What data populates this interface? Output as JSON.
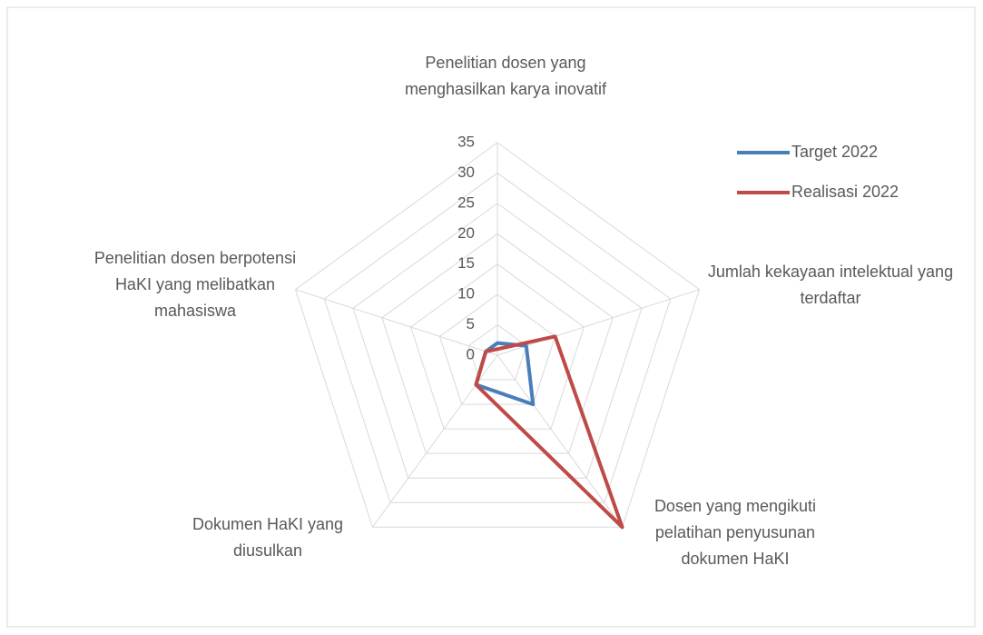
{
  "chart_data": {
    "type": "radar",
    "categories": [
      "Penelitian dosen yang menghasilkan karya inovatif",
      "Jumlah kekayaan intelektual yang terdaftar",
      "Dosen yang mengikuti pelatihan penyusunan dokumen HaKI",
      "Dokumen HaKI yang diusulkan",
      "Penelitian dosen berpotensi HaKI yang melibatkan mahasiswa"
    ],
    "series": [
      {
        "name": "Target 2022",
        "color": "#4a7ebb",
        "values": [
          2,
          5,
          10,
          6,
          2
        ]
      },
      {
        "name": "Realisasi 2022",
        "color": "#be4b48",
        "values": [
          1,
          10,
          35,
          6,
          2
        ]
      }
    ],
    "ylim": [
      0,
      35
    ],
    "yticks": [
      0,
      5,
      10,
      15,
      20,
      25,
      30,
      35
    ],
    "grid": true,
    "legend": "right"
  }
}
